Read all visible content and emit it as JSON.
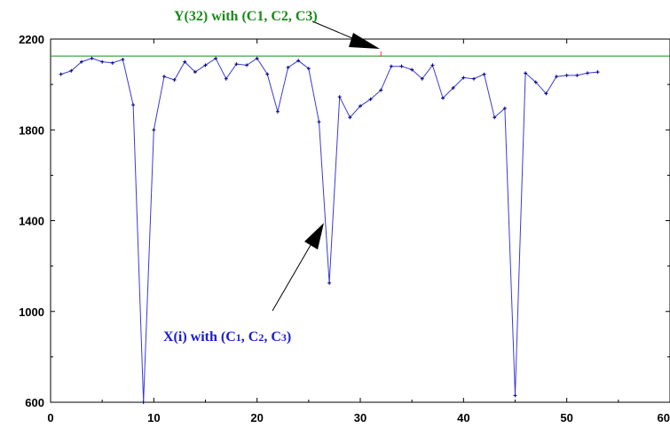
{
  "chart_data": {
    "type": "line",
    "title": "",
    "xlabel": "",
    "ylabel": "",
    "xlim": [
      0,
      60
    ],
    "ylim": [
      600,
      2200
    ],
    "x_ticks": [
      "0",
      "10",
      "20",
      "30",
      "40",
      "50",
      "60"
    ],
    "y_ticks": [
      "600",
      "1000",
      "1400",
      "1800",
      "2200"
    ],
    "grid": false,
    "series": [
      {
        "color": "#3b3bd6",
        "marker": "+",
        "x": [
          1,
          2,
          3,
          4,
          5,
          6,
          7,
          8,
          9,
          10,
          11,
          12,
          13,
          14,
          15,
          16,
          17,
          18,
          19,
          20,
          21,
          22,
          23,
          24,
          25,
          26,
          27,
          28,
          29,
          30,
          31,
          32,
          33,
          34,
          35,
          36,
          37,
          38,
          39,
          40,
          41,
          42,
          43,
          44,
          45,
          46,
          47,
          48,
          49,
          50,
          51,
          52,
          53
        ],
        "values": [
          2045,
          2060,
          2100,
          2115,
          2100,
          2095,
          2110,
          1910,
          600,
          1800,
          2035,
          2020,
          2100,
          2055,
          2085,
          2115,
          2025,
          2090,
          2085,
          2115,
          2045,
          1880,
          2075,
          2105,
          2070,
          1835,
          1125,
          1945,
          1855,
          1905,
          1935,
          1975,
          2080,
          2080,
          2065,
          2025,
          2085,
          1940,
          1985,
          2030,
          2025,
          2045,
          1855,
          1895,
          630,
          2050,
          2010,
          1960,
          2035,
          2040,
          2040,
          2050,
          2055
        ]
      }
    ],
    "reference_line": {
      "value": 2125,
      "color": "#1a8a1a"
    },
    "reference_marker": {
      "x": 32,
      "y": 2130,
      "color": "#ff3030"
    },
    "annotations": [
      {
        "id": "y32",
        "text": "Y(32) with (C1, C2, C3)",
        "color": "#1a8a1a"
      },
      {
        "id": "xi",
        "text_main": "X(i) with (C",
        "sub1": "1",
        "sep1": ", C",
        "sub2": "2",
        "sep2": ", C",
        "sub3": "3",
        "close": ")",
        "color": "#1a1ad6"
      }
    ]
  }
}
